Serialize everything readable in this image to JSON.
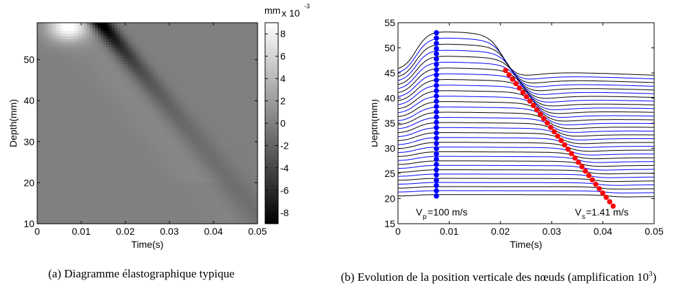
{
  "chart_data": [
    {
      "type": "heatmap",
      "xlabel": "Time(s)",
      "ylabel": "Depth(mm)",
      "xlim": [
        0,
        0.05
      ],
      "ylim": [
        10,
        59
      ],
      "xticks": [
        "0",
        "0.01",
        "0.02",
        "0.03",
        "0.04",
        "0.05"
      ],
      "yticks": [
        "10",
        "20",
        "30",
        "40",
        "50"
      ],
      "colorbar": {
        "unit": "mm",
        "exponent_label": "x 10",
        "exponent": "-3",
        "range": [
          -9,
          9
        ],
        "ticks": [
          "8",
          "6",
          "4",
          "2",
          "0",
          "-2",
          "-4",
          "-6",
          "-8"
        ],
        "colormap": "gray"
      },
      "features": {
        "bright_peak": {
          "time": 0.007,
          "depth": 58,
          "value": 9
        },
        "dark_peak": {
          "time": 0.015,
          "depth": 58,
          "value": -9
        },
        "shear_wave_front": {
          "start": [
            0.015,
            58
          ],
          "end": [
            0.05,
            12
          ]
        }
      }
    },
    {
      "type": "line",
      "xlabel": "Time(s)",
      "ylabel": "Depth(mm)",
      "xlim": [
        0,
        0.05
      ],
      "ylim": [
        15,
        55
      ],
      "xticks": [
        "0",
        "0.01",
        "0.02",
        "0.03",
        "0.04",
        "0.05"
      ],
      "yticks": [
        "15",
        "20",
        "25",
        "30",
        "35",
        "40",
        "45",
        "50",
        "55"
      ],
      "node_count": 33,
      "node_depth_first": 20.5,
      "node_depth_last": 45.5,
      "blue_markers": {
        "time": 0.0075,
        "depth_first": 20.5,
        "depth_last": 53
      },
      "red_markers": {
        "time_first": 0.042,
        "depth_first": 18.5,
        "time_last": 0.021,
        "depth_last": 45.5
      },
      "series_colors": [
        "#000000",
        "#0000ff"
      ],
      "marker_colors": {
        "p_wave": "#0000ff",
        "s_wave": "#ff0000"
      },
      "annotations": {
        "vp": {
          "symbol": "V",
          "subscript": "p",
          "value": "=100 m/s"
        },
        "vs": {
          "symbol": "V",
          "subscript": "s",
          "value": "=1.41 m/s"
        }
      }
    }
  ],
  "captions": {
    "a": {
      "tag": "(a)",
      "text": "Diagramme élastographique typique"
    },
    "b": {
      "tag": "(b)",
      "text": "Evolution de la position verticale des nœuds (amplification 10",
      "sup": "3",
      "end": ")"
    }
  }
}
